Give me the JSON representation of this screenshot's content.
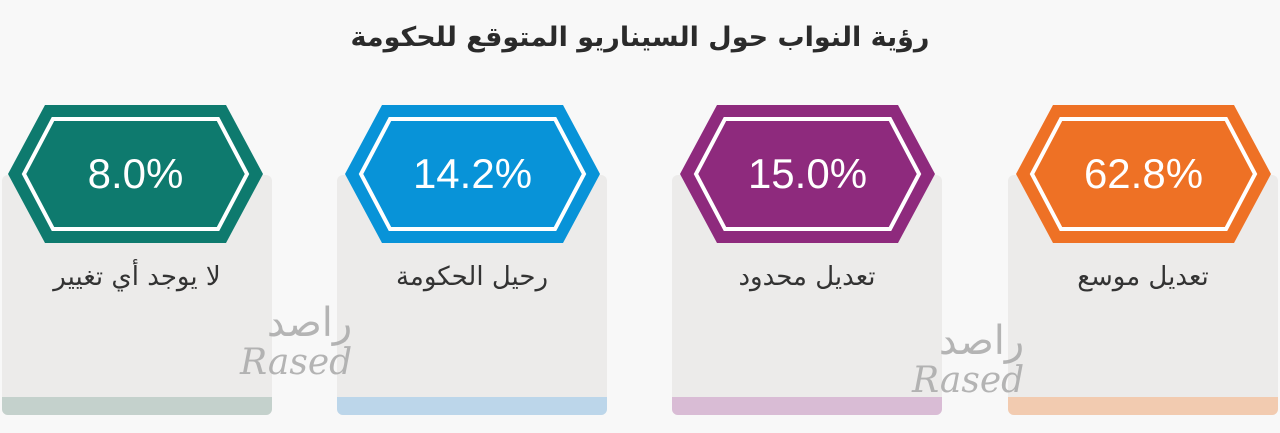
{
  "title": "رؤية النواب حول السيناريو المتوقع للحكومة",
  "chart_data": {
    "type": "bar",
    "title": "رؤية النواب حول السيناريو المتوقع للحكومة",
    "unit": "%",
    "categories": [
      "تعديل موسع",
      "تعديل محدود",
      "رحيل الحكومة",
      "لا يوجد أي تغيير"
    ],
    "values": [
      62.8,
      15.0,
      14.2,
      8.0
    ],
    "value_labels": [
      "62.8%",
      "15.0%",
      "14.2%",
      "8.0%"
    ],
    "colors": [
      "#ee7125",
      "#8e2a7d",
      "#0893d8",
      "#0e7a6e"
    ],
    "strip_colors": [
      "#f2cbb0",
      "#d9bcd5",
      "#bcd6ea",
      "#c4d1cc"
    ]
  },
  "watermark": {
    "arabic": "راصد",
    "latin": "Rased"
  }
}
